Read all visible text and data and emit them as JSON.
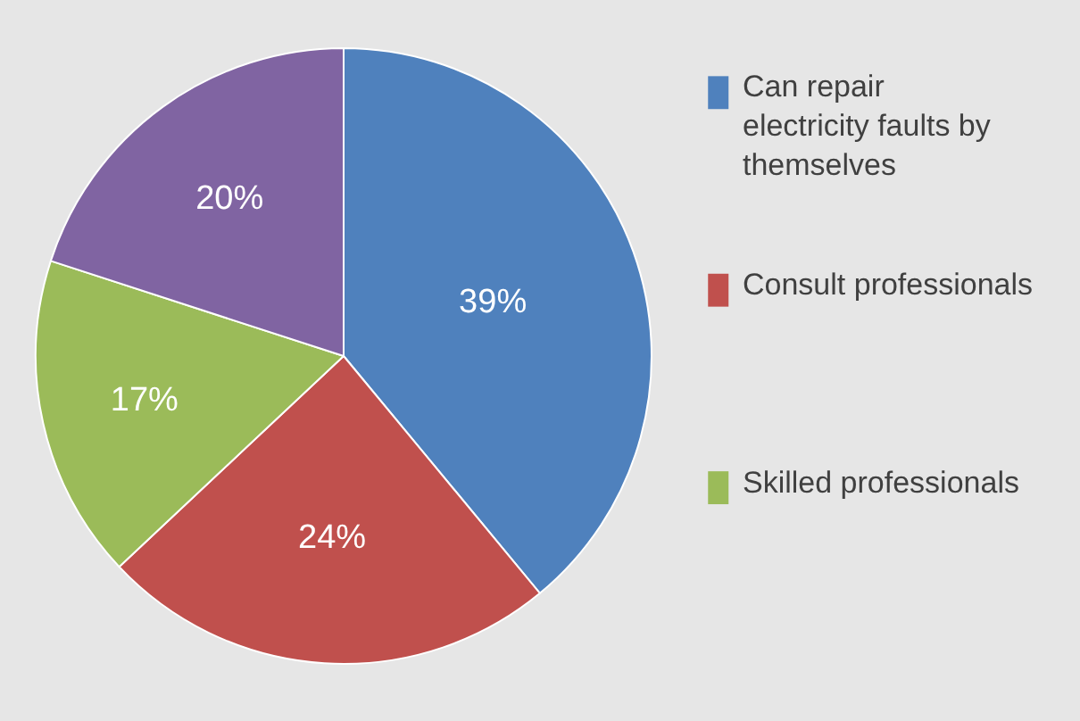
{
  "chart_data": {
    "type": "pie",
    "categories": [
      "Can repair electricity faults by themselves",
      "Consult professionals",
      "Skilled professionals",
      null
    ],
    "values": [
      39,
      24,
      17,
      20
    ],
    "colors": [
      "#4f81bd",
      "#c0504d",
      "#9bbb59",
      "#8064a2"
    ],
    "value_labels": [
      "39%",
      "24%",
      "17%",
      "20%"
    ],
    "legend": "right"
  }
}
